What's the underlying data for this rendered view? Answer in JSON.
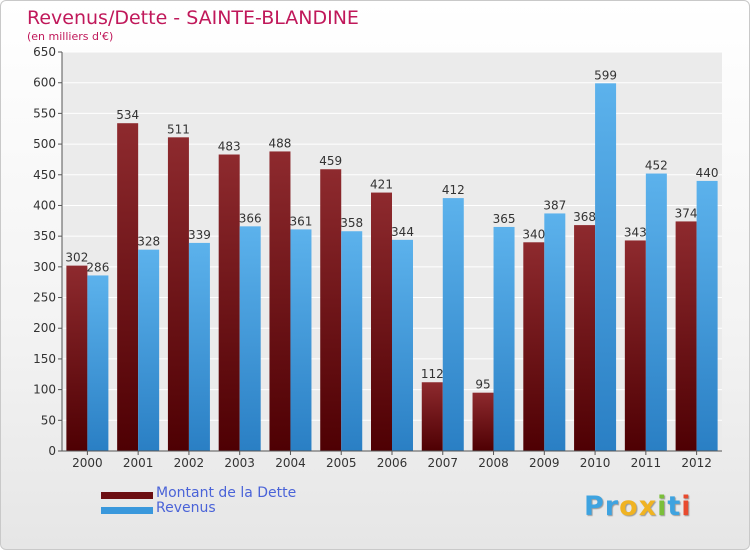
{
  "header": {
    "title": "Revenus/Dette - SAINTE-BLANDINE",
    "subtitle": "(en milliers d'€)"
  },
  "legend": {
    "items": [
      {
        "label": "Montant de la Dette",
        "color": "#6b0e12"
      },
      {
        "label": "Revenus",
        "color": "#3a98dc"
      }
    ]
  },
  "logo": {
    "letters": [
      {
        "char": "P",
        "color": "#3ea3e0"
      },
      {
        "char": "r",
        "color": "#3ea3e0"
      },
      {
        "char": "o",
        "color": "#f0b322"
      },
      {
        "char": "x",
        "color": "#f0b322"
      },
      {
        "char": "i",
        "color": "#7bbf3a"
      },
      {
        "char": "t",
        "color": "#3ea3e0"
      },
      {
        "char": "i",
        "color": "#e84a2e"
      }
    ]
  },
  "chart_data": {
    "type": "bar",
    "title": "Revenus/Dette - SAINTE-BLANDINE",
    "subtitle": "(en milliers d'€)",
    "categories": [
      "2000",
      "2001",
      "2002",
      "2003",
      "2004",
      "2005",
      "2006",
      "2007",
      "2008",
      "2009",
      "2010",
      "2011",
      "2012"
    ],
    "series": [
      {
        "name": "Montant de la Dette",
        "color": "#6b0e12",
        "values": [
          302,
          534,
          511,
          483,
          488,
          459,
          421,
          112,
          95,
          340,
          368,
          343,
          374
        ]
      },
      {
        "name": "Revenus",
        "color": "#3a98dc",
        "values": [
          286,
          328,
          339,
          366,
          361,
          358,
          344,
          412,
          365,
          387,
          599,
          452,
          440
        ]
      }
    ],
    "ylim": [
      0,
      650
    ],
    "yticks": [
      0,
      50,
      100,
      150,
      200,
      250,
      300,
      350,
      400,
      450,
      500,
      550,
      600,
      650
    ],
    "grid": true,
    "legend_position": "bottom-left"
  }
}
